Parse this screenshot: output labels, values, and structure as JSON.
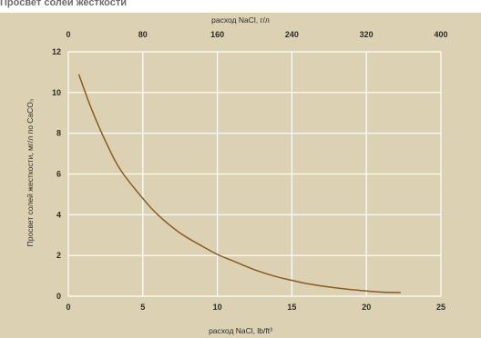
{
  "header": {
    "caption": "Просвет солей жесткости"
  },
  "colors": {
    "panel": "#dcd1b2",
    "grid": "#ffffff",
    "curve": "#8b5a24",
    "text": "#2b2b2b"
  },
  "chart_data": {
    "type": "line",
    "title": "",
    "xlabel": "расход NaCl, lb/ft³",
    "x2label": "расход NaCl, г/л",
    "ylabel": "Просвет солей жесткости, мг/л по CaCO₃",
    "xlim": [
      0,
      25
    ],
    "x2lim": [
      0,
      400
    ],
    "ylim": [
      0,
      12
    ],
    "x_ticks": [
      "0",
      "5",
      "10",
      "15",
      "20",
      "25"
    ],
    "x2_ticks": [
      "0",
      "80",
      "160",
      "240",
      "320",
      "400"
    ],
    "y_ticks": [
      "0",
      "2",
      "4",
      "6",
      "8",
      "10",
      "12"
    ],
    "grid": true,
    "series": [
      {
        "x": [
          0.7,
          1.5,
          2.5,
          3.5,
          5,
          6,
          7.5,
          9,
          10,
          11,
          12.5,
          14,
          15,
          16,
          17.5,
          19,
          20,
          21,
          22.3
        ],
        "values": [
          10.9,
          9.3,
          7.6,
          6.2,
          4.8,
          4.0,
          3.1,
          2.45,
          2.05,
          1.75,
          1.3,
          0.95,
          0.78,
          0.62,
          0.45,
          0.32,
          0.26,
          0.2,
          0.18
        ]
      }
    ]
  }
}
